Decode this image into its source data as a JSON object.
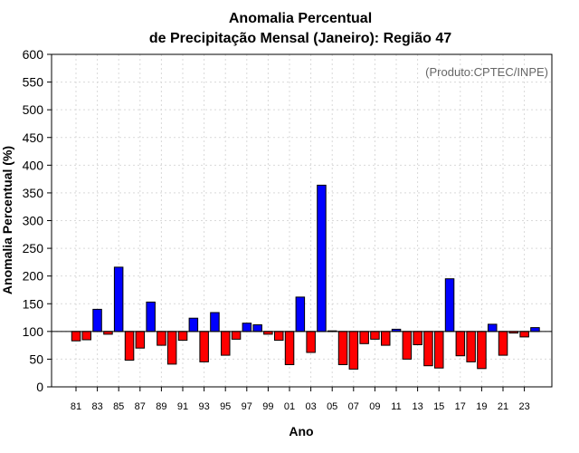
{
  "chart_data": {
    "type": "bar",
    "title_line1": "Anomalia Percentual",
    "title_line2": "de Precipitação Mensal (Janeiro): Região 47",
    "credit": "(Produto:CPTEC/INPE)",
    "xlabel": "Ano",
    "ylabel": "Anomalia Percentual (%)",
    "ylim": [
      0,
      600
    ],
    "yticks": [
      0,
      50,
      100,
      150,
      200,
      250,
      300,
      350,
      400,
      450,
      500,
      550,
      600
    ],
    "baseline": 100,
    "grid": true,
    "colors": {
      "above": "#0000ff",
      "below": "#ff0000",
      "outline": "#000000"
    },
    "years": [
      1981,
      1982,
      1983,
      1984,
      1985,
      1986,
      1987,
      1988,
      1989,
      1990,
      1991,
      1992,
      1993,
      1994,
      1995,
      1996,
      1997,
      1998,
      1999,
      2000,
      2001,
      2002,
      2003,
      2004,
      2005,
      2006,
      2007,
      2008,
      2009,
      2010,
      2011,
      2012,
      2013,
      2014,
      2015,
      2016,
      2017,
      2018,
      2019,
      2020,
      2021,
      2022,
      2023,
      2024
    ],
    "xtick_labels": [
      "81",
      "83",
      "85",
      "87",
      "89",
      "91",
      "93",
      "95",
      "97",
      "99",
      "01",
      "03",
      "05",
      "07",
      "09",
      "11",
      "13",
      "15",
      "17",
      "19",
      "21",
      "23"
    ],
    "xtick_years": [
      1981,
      1983,
      1985,
      1987,
      1989,
      1991,
      1993,
      1995,
      1997,
      1999,
      2001,
      2003,
      2005,
      2007,
      2009,
      2011,
      2013,
      2015,
      2017,
      2019,
      2021,
      2023
    ],
    "values": [
      83,
      85,
      140,
      95,
      216,
      48,
      70,
      153,
      75,
      41,
      84,
      124,
      45,
      134,
      57,
      86,
      115,
      112,
      95,
      84,
      40,
      162,
      62,
      364,
      101,
      40,
      32,
      78,
      86,
      75,
      104,
      50,
      76,
      38,
      34,
      195,
      56,
      45,
      33,
      113,
      57,
      97,
      90,
      107
    ]
  }
}
